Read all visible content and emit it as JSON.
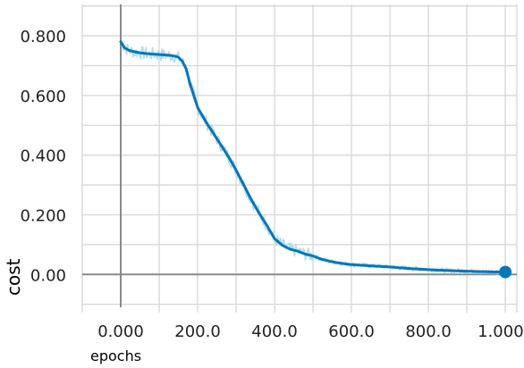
{
  "chart_data": {
    "type": "line",
    "xlabel": "epochs",
    "ylabel": "cost",
    "xlim": [
      -100,
      1030
    ],
    "ylim": [
      -0.11,
      0.905
    ],
    "grid": true,
    "x_ticks": [
      0,
      200,
      400,
      600,
      800,
      1000
    ],
    "x_tick_labels": [
      "0.000",
      "200.0",
      "400.0",
      "600.0",
      "800.0",
      "1.000k"
    ],
    "x_minor_ticks": [
      -100,
      100,
      300,
      500,
      700,
      900
    ],
    "y_ticks": [
      0,
      0.2,
      0.4,
      0.6,
      0.8
    ],
    "y_tick_labels": [
      "0.00",
      "0.200",
      "0.400",
      "0.600",
      "0.800"
    ],
    "y_minor_ticks": [
      -0.1,
      0.1,
      0.3,
      0.5,
      0.7,
      0.9
    ],
    "series": [
      {
        "style": "smoothed",
        "color": "#0077bb",
        "raw_color": "#a8d8ea",
        "x": [
          0,
          5,
          10,
          20,
          30,
          50,
          70,
          90,
          110,
          130,
          140,
          150,
          160,
          170,
          180,
          200,
          220,
          240,
          260,
          280,
          300,
          320,
          340,
          360,
          380,
          400,
          420,
          440,
          460,
          480,
          500,
          520,
          540,
          560,
          580,
          600,
          650,
          700,
          750,
          800,
          850,
          900,
          950,
          1000
        ],
        "values": [
          0.78,
          0.77,
          0.76,
          0.752,
          0.748,
          0.743,
          0.74,
          0.738,
          0.736,
          0.734,
          0.732,
          0.728,
          0.715,
          0.69,
          0.64,
          0.56,
          0.515,
          0.475,
          0.435,
          0.395,
          0.35,
          0.3,
          0.25,
          0.205,
          0.165,
          0.12,
          0.098,
          0.085,
          0.078,
          0.068,
          0.062,
          0.052,
          0.045,
          0.04,
          0.036,
          0.033,
          0.029,
          0.025,
          0.02,
          0.016,
          0.013,
          0.011,
          0.009,
          0.008
        ]
      }
    ],
    "end_marker": {
      "x": 1000,
      "y": 0.008
    }
  }
}
